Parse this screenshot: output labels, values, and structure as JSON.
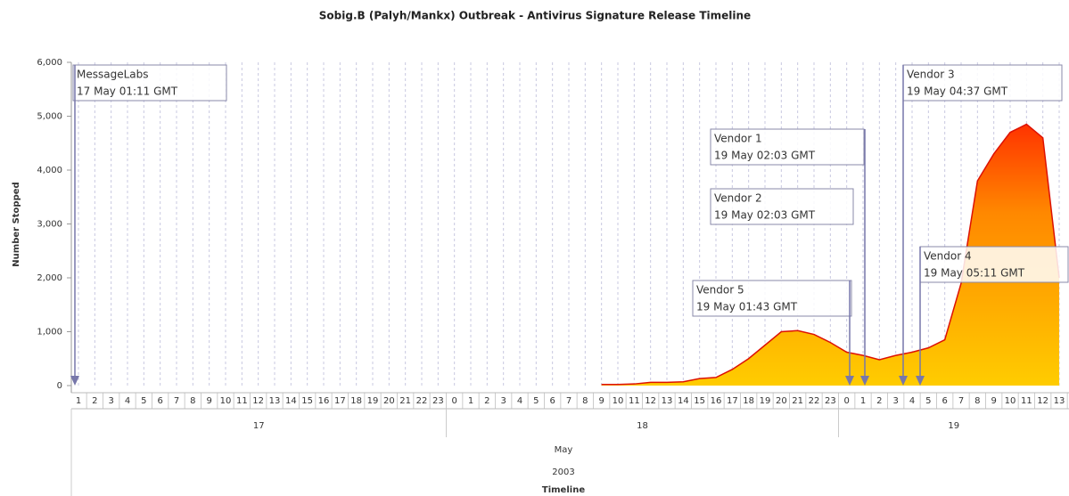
{
  "chart_data": {
    "type": "area",
    "title": "Sobig.B (Palyh/Mankx) Outbreak - Antivirus Signature Release Timeline",
    "y_label": "Number Stopped",
    "x_label": "Timeline",
    "month": "May",
    "year": "2003",
    "days": [
      "17",
      "18",
      "19"
    ],
    "categories": [
      "1",
      "2",
      "3",
      "4",
      "5",
      "6",
      "7",
      "8",
      "9",
      "10",
      "11",
      "12",
      "13",
      "14",
      "15",
      "16",
      "17",
      "18",
      "19",
      "20",
      "21",
      "22",
      "23",
      "0",
      "1",
      "2",
      "3",
      "4",
      "5",
      "6",
      "7",
      "8",
      "9",
      "10",
      "11",
      "12",
      "13",
      "14",
      "15",
      "16",
      "17",
      "18",
      "19",
      "20",
      "21",
      "22",
      "23",
      "0",
      "1",
      "2",
      "3",
      "4",
      "5",
      "6",
      "7",
      "8",
      "9",
      "10",
      "11",
      "12",
      "13"
    ],
    "values": [
      null,
      null,
      null,
      null,
      null,
      null,
      null,
      null,
      null,
      null,
      null,
      null,
      null,
      null,
      null,
      null,
      null,
      null,
      null,
      null,
      null,
      null,
      null,
      null,
      null,
      null,
      null,
      null,
      null,
      null,
      null,
      null,
      20,
      20,
      30,
      60,
      60,
      70,
      130,
      150,
      300,
      500,
      750,
      1000,
      1020,
      950,
      800,
      620,
      560,
      480,
      560,
      620,
      700,
      850,
      1900,
      3800,
      4300,
      4700,
      4850,
      4600,
      2000
    ],
    "ylim": [
      0,
      6000
    ],
    "yticks": [
      0,
      {
        "value": 1000,
        "label": "1,000"
      },
      {
        "value": 2000,
        "label": "2,000"
      },
      {
        "value": 3000,
        "label": "3,000"
      },
      {
        "value": 4000,
        "label": "4,000"
      },
      {
        "value": 5000,
        "label": "5,000"
      },
      {
        "value": 6000,
        "label": "6,000"
      }
    ],
    "grid": true,
    "annotations": [
      {
        "title": "MessageLabs",
        "time": "17 May 01:11 GMT"
      },
      {
        "title": "Vendor 1",
        "time": "19 May 02:03 GMT"
      },
      {
        "title": "Vendor 2",
        "time": "19 May 02:03 GMT"
      },
      {
        "title": "Vendor 5",
        "time": "19 May 01:43 GMT"
      },
      {
        "title": "Vendor 3",
        "time": "19 May 04:37 GMT"
      },
      {
        "title": "Vendor 4",
        "time": "19 May 05:11 GMT"
      }
    ]
  }
}
